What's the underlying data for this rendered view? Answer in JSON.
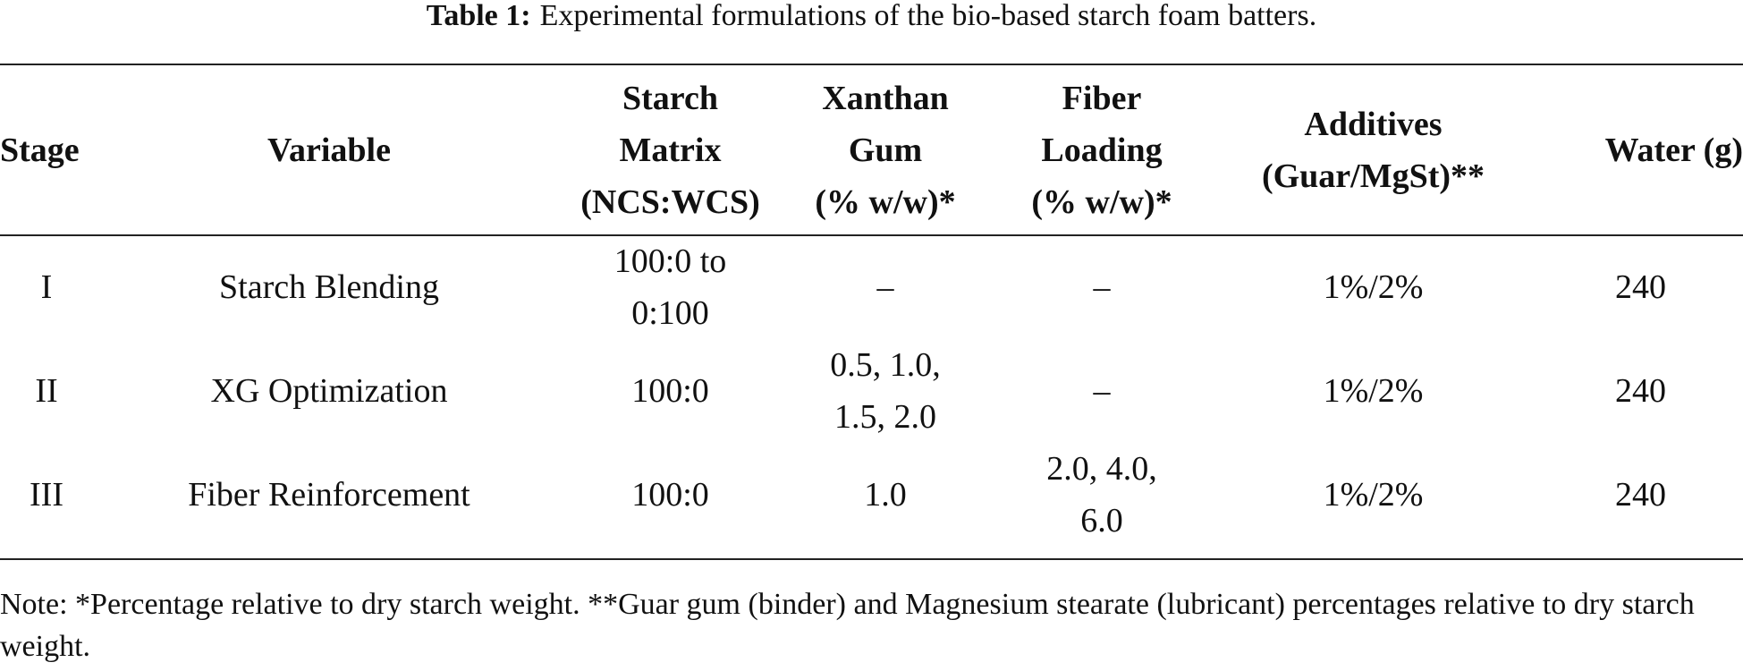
{
  "caption": {
    "label": "Table 1:",
    "text": "Experimental formulations of the bio-based starch foam batters."
  },
  "columns": {
    "stage": "Stage",
    "variable": "Variable",
    "starch": [
      "Starch",
      "Matrix",
      "(NCS:WCS)"
    ],
    "xanthan": [
      "Xanthan",
      "Gum",
      "(% w/w)*"
    ],
    "fiber": [
      "Fiber",
      "Loading",
      "(% w/w)*"
    ],
    "additives": [
      "Additives",
      "(Guar/MgSt)**"
    ],
    "water": "Water (g)"
  },
  "rows": [
    {
      "stage": "I",
      "variable": "Starch Blending",
      "starch": [
        "100:0 to",
        "0:100"
      ],
      "xanthan": [
        "–"
      ],
      "fiber": [
        "–"
      ],
      "additives": "1%/2%",
      "water": "240"
    },
    {
      "stage": "II",
      "variable": "XG Optimization",
      "starch": [
        "100:0"
      ],
      "xanthan": [
        "0.5, 1.0,",
        "1.5, 2.0"
      ],
      "fiber": [
        "–"
      ],
      "additives": "1%/2%",
      "water": "240"
    },
    {
      "stage": "III",
      "variable": "Fiber Reinforcement",
      "starch": [
        "100:0"
      ],
      "xanthan": [
        "1.0"
      ],
      "fiber": [
        "2.0, 4.0,",
        "6.0"
      ],
      "additives": "1%/2%",
      "water": "240"
    }
  ],
  "note": "Note: *Percentage relative to dry starch weight. **Guar gum (binder) and Magnesium stearate (lubricant) percentages relative to dry starch weight."
}
